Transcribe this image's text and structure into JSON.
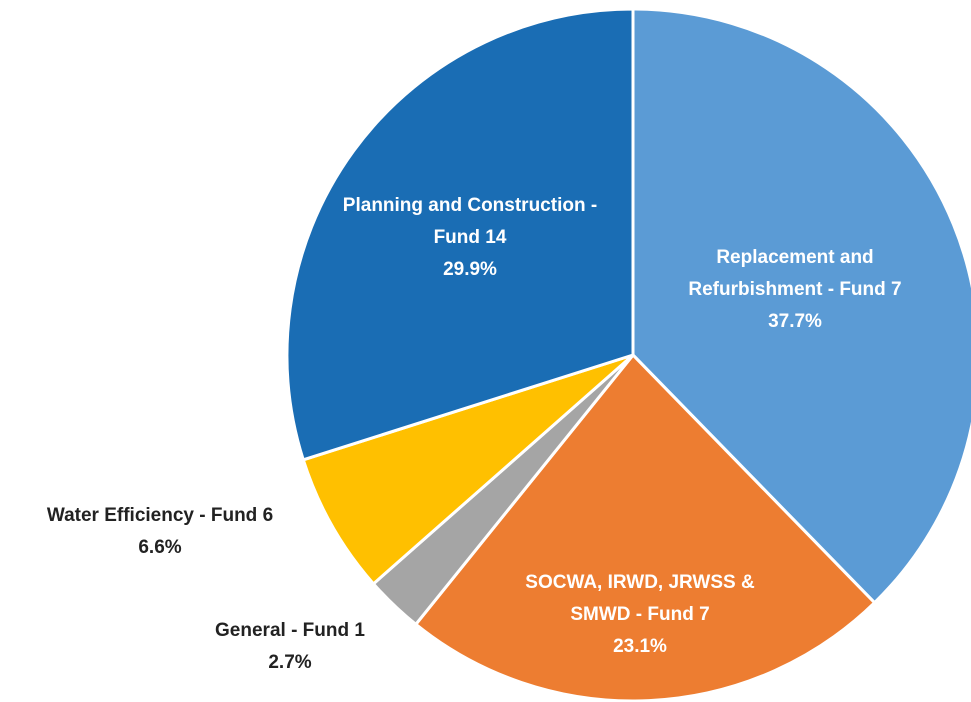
{
  "chart_data": {
    "type": "pie",
    "categories": [
      "Replacement and Refurbishment - Fund 7",
      "SOCWA, IRWD, JRWSS & SMWD - Fund 7",
      "General - Fund 1",
      "Water Efficiency - Fund 6",
      "Planning and Construction - Fund 14"
    ],
    "values": [
      37.7,
      23.1,
      2.7,
      6.6,
      29.9
    ],
    "value_labels": [
      "37.7%",
      "23.1%",
      "2.7%",
      "6.6%",
      "29.9%"
    ],
    "colors": [
      "#5b9bd5",
      "#ed7d31",
      "#a5a5a5",
      "#ffc000",
      "#1a6db4"
    ]
  }
}
